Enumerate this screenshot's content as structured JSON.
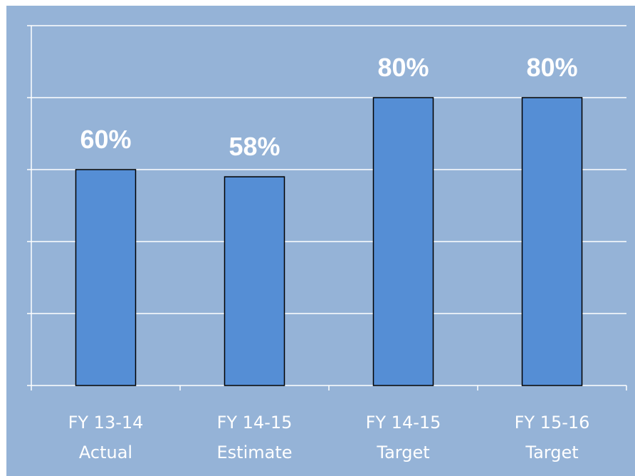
{
  "chart_data": {
    "type": "bar",
    "title": "",
    "xlabel": "",
    "ylabel": "",
    "categories": [
      [
        "FY 13-14",
        "Actual"
      ],
      [
        "FY 14-15",
        "Estimate"
      ],
      [
        "FY 14-15",
        "Target"
      ],
      [
        "FY 15-16",
        "Target"
      ]
    ],
    "values": [
      60,
      58,
      80,
      80
    ],
    "value_labels": [
      "60%",
      "58%",
      "80%",
      "80%"
    ],
    "ylim": [
      0,
      100
    ],
    "grid": true,
    "legend": "none",
    "colors": {
      "background": "#95b3d7",
      "bar_fill": "#558ed5",
      "bar_stroke": "#000000",
      "gridline": "#ffffff",
      "text": "#ffffff"
    }
  }
}
